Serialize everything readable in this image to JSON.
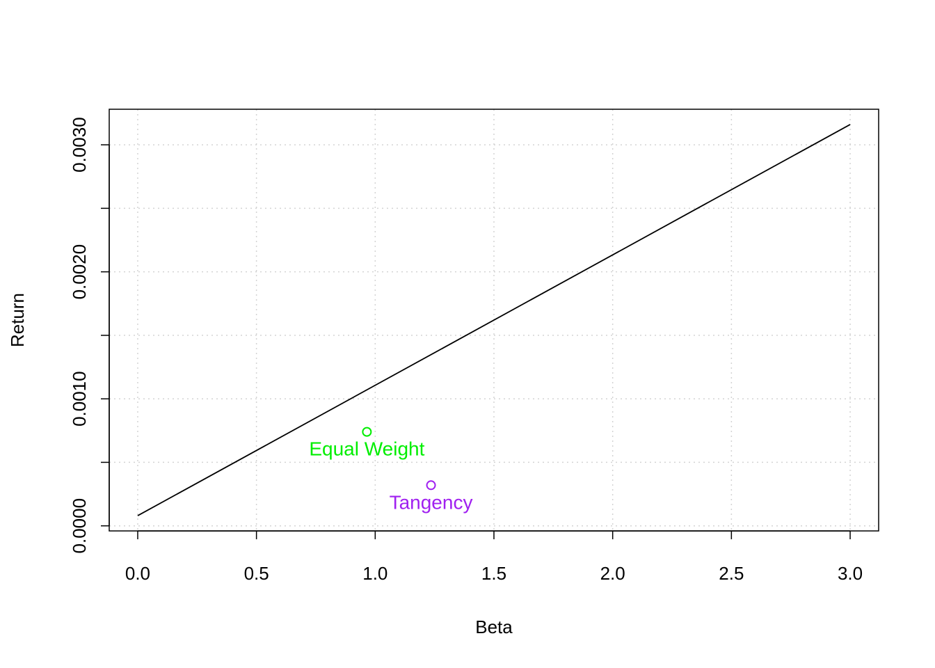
{
  "chart_data": {
    "type": "scatter",
    "title": "",
    "xlabel": "Beta",
    "ylabel": "Return",
    "xlim": [
      -0.12,
      3.12
    ],
    "ylim": [
      -4e-05,
      0.00328
    ],
    "grid": true,
    "x_ticks": [
      0.0,
      0.5,
      1.0,
      1.5,
      2.0,
      2.5,
      3.0
    ],
    "x_tick_labels": [
      "0.0",
      "0.5",
      "1.0",
      "1.5",
      "2.0",
      "2.5",
      "3.0"
    ],
    "y_ticks": [
      0.0,
      0.0005,
      0.001,
      0.0015,
      0.002,
      0.0025,
      0.003
    ],
    "y_tick_labels": [
      "0.0000",
      "",
      "0.0010",
      "",
      "0.0020",
      "",
      "0.0030"
    ],
    "line": {
      "x": [
        0.0,
        3.0
      ],
      "y": [
        8e-05,
        0.00316
      ],
      "color": "#000000"
    },
    "points": [
      {
        "label": "Equal Weight",
        "x": 0.965,
        "y": 0.00074,
        "color": "#00ee00"
      },
      {
        "label": "Tangency",
        "x": 1.235,
        "y": 0.00032,
        "color": "#a020f0"
      }
    ]
  }
}
